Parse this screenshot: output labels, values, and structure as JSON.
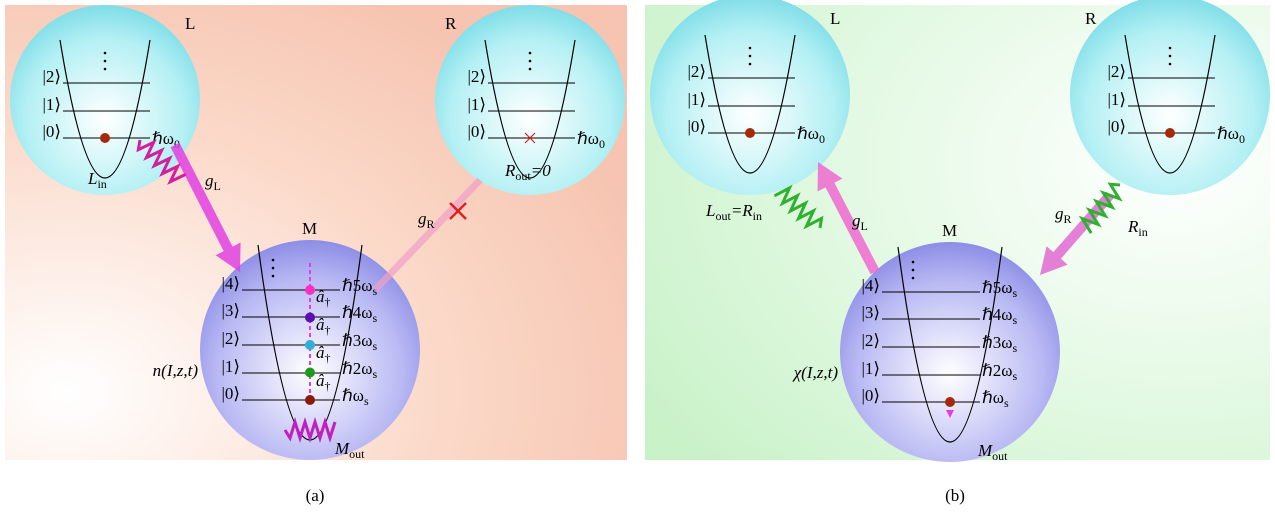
{
  "panels": [
    {
      "caption": "(a)",
      "L": {
        "name": "L",
        "kets": [
          "|2⟩",
          "|1⟩",
          "|0⟩"
        ],
        "energy": [
          "ℏω",
          "0"
        ]
      },
      "R": {
        "name": "R",
        "kets": [
          "|2⟩",
          "|1⟩",
          "|0⟩"
        ],
        "energy": [
          "ℏω",
          "0"
        ]
      },
      "M": {
        "name": "M",
        "kets": [
          "|4⟩",
          "|3⟩",
          "|2⟩",
          "|1⟩",
          "|0⟩"
        ],
        "energies": [
          [
            "ℏ5ω",
            "s"
          ],
          [
            "ℏ4ω",
            "s"
          ],
          [
            "ℏ3ω",
            "s"
          ],
          [
            "ℏ2ω",
            "s"
          ],
          [
            "ℏω",
            "s"
          ]
        ]
      },
      "in_label": [
        "L",
        "in"
      ],
      "gL": [
        "g",
        "L"
      ],
      "gR": [
        "g",
        "R"
      ],
      "out_label": [
        "R",
        "out",
        "=0"
      ],
      "creation": [
        [
          "â",
          "†"
        ],
        [
          "â",
          "†"
        ],
        [
          "â",
          "†"
        ],
        [
          "â",
          "†"
        ]
      ],
      "field": "n(I,z,t)",
      "M_out": [
        "M",
        "out"
      ]
    },
    {
      "caption": "(b)",
      "L": {
        "name": "L",
        "kets": [
          "|2⟩",
          "|1⟩",
          "|0⟩"
        ],
        "energy": [
          "ℏω",
          "0"
        ]
      },
      "R": {
        "name": "R",
        "kets": [
          "|2⟩",
          "|1⟩",
          "|0⟩"
        ],
        "energy": [
          "ℏω",
          "0"
        ]
      },
      "M": {
        "name": "M",
        "kets": [
          "|4⟩",
          "|3⟩",
          "|2⟩",
          "|1⟩",
          "|0⟩"
        ],
        "energies": [
          [
            "ℏ5ω",
            "s"
          ],
          [
            "ℏ4ω",
            "s"
          ],
          [
            "ℏ3ω",
            "s"
          ],
          [
            "ℏ2ω",
            "s"
          ],
          [
            "ℏω",
            "s"
          ]
        ]
      },
      "out_label": [
        "L",
        "out",
        "=R",
        "in"
      ],
      "in_label": [
        "R",
        "in"
      ],
      "gL": [
        "g",
        "L"
      ],
      "gR": [
        "g",
        "R"
      ],
      "field": "χ(I,z,t)",
      "M_out": [
        "M",
        "out"
      ]
    }
  ]
}
